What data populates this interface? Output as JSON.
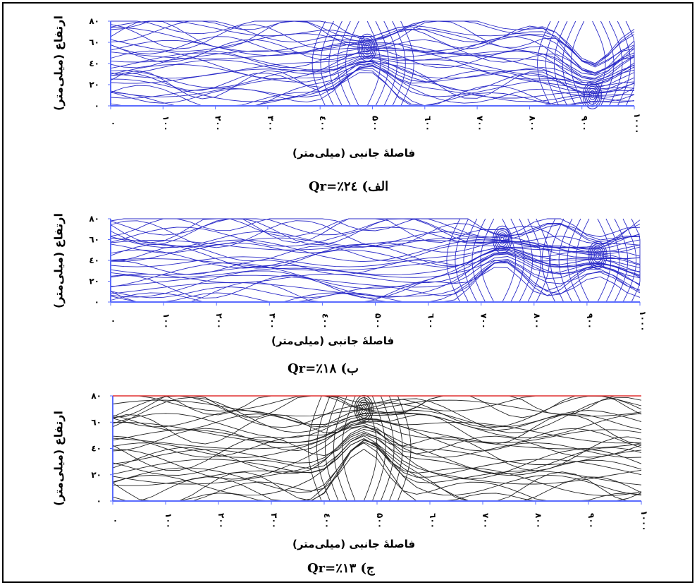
{
  "chart_data": [
    {
      "type": "streamline",
      "caption_prefix": "الف)",
      "caption_value": "Qr=٪۲٤",
      "xlabel": "فاصلهٔ جانبی (میلی‌متر)",
      "ylabel": "ارتفاع (میلی‌متر)",
      "xlim": [
        0,
        1000
      ],
      "ylim": [
        0,
        80
      ],
      "x_ticks": [
        "۰",
        "۱۰۰",
        "۲۰۰",
        "۳۰۰",
        "٤۰۰",
        "۵۰۰",
        "٦۰۰",
        "۷۰۰",
        "۸۰۰",
        "۹۰۰",
        "۱۰۰۰"
      ],
      "y_ticks": [
        "۰",
        "۲۰",
        "٤۰",
        "٦۰",
        "۸۰"
      ],
      "line_color": "#2b2bc8",
      "vortices": [
        {
          "x": 490,
          "y": 55,
          "label": "eddy"
        },
        {
          "x": 920,
          "y": 10,
          "label": "eddy"
        }
      ]
    },
    {
      "type": "streamline",
      "caption_prefix": "ب)",
      "caption_value": "Qr=٪۱۸",
      "xlabel": "فاصلهٔ جانبی (میلی‌متر)",
      "ylabel": "ارتفاع (میلی‌متر)",
      "xlim": [
        0,
        1000
      ],
      "ylim": [
        0,
        80
      ],
      "x_ticks": [
        "۰",
        "۱۰۰",
        "۲۰۰",
        "۳۰۰",
        "٤۰۰",
        "۵۰۰",
        "٦۰۰",
        "۷۰۰",
        "۸۰۰",
        "۹۰۰",
        "۱۰۰۰"
      ],
      "y_ticks": [
        "۰",
        "۲۰",
        "٤۰",
        "٦۰",
        "۸۰"
      ],
      "line_color": "#2b2bc8",
      "vortices": [
        {
          "x": 740,
          "y": 60,
          "label": "eddy"
        },
        {
          "x": 920,
          "y": 45,
          "label": "eddy"
        }
      ]
    },
    {
      "type": "streamline",
      "caption_prefix": "ج)",
      "caption_value": "Qr=٪۱۳",
      "xlabel": "فاصلهٔ جانبی (میلی‌متر)",
      "ylabel": "ارتفاع (میلی‌متر)",
      "xlim": [
        0,
        1000
      ],
      "ylim": [
        0,
        80
      ],
      "x_ticks": [
        "۰",
        "۱۰۰",
        "۲۰۰",
        "۳۰۰",
        "٤۰۰",
        "۵۰۰",
        "٦۰۰",
        "۷۰۰",
        "۸۰۰",
        "۹۰۰",
        "۱۰۰۰"
      ],
      "y_ticks": [
        "۰",
        "۲۰",
        "٤۰",
        "٦۰",
        "۸۰"
      ],
      "line_color": "#222222",
      "top_line_color": "#e03030",
      "vortices": [
        {
          "x": 475,
          "y": 70,
          "label": "eddy"
        }
      ]
    }
  ]
}
